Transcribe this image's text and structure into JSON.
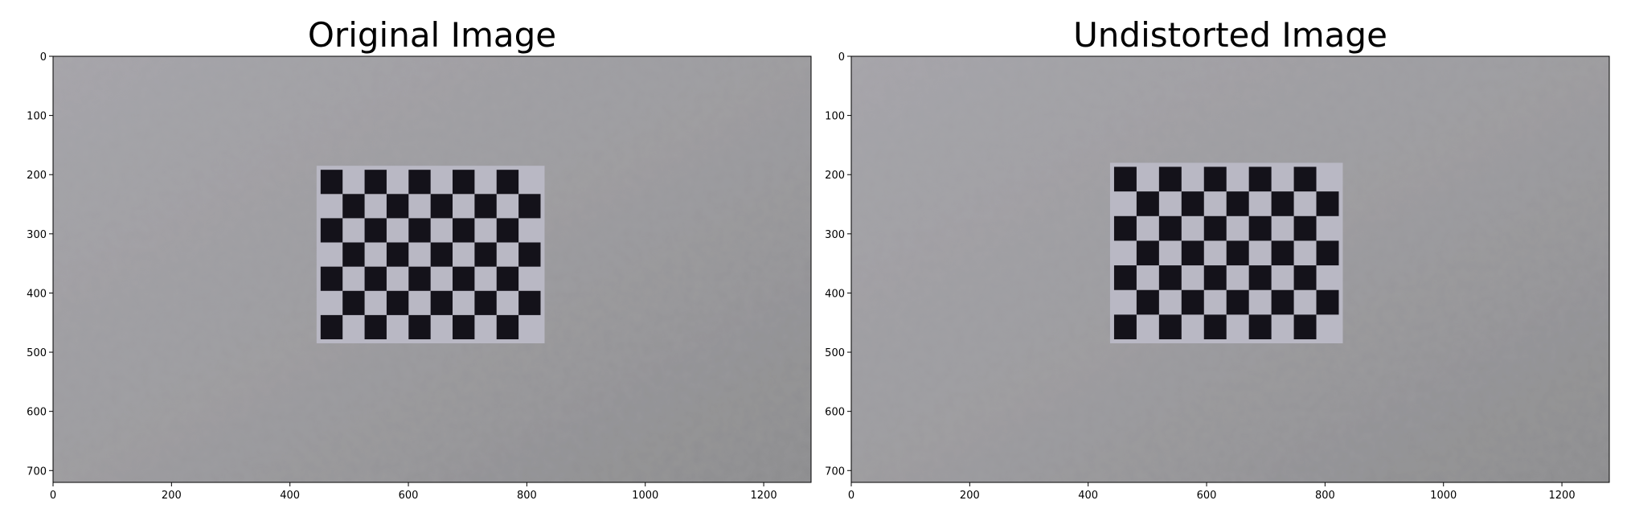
{
  "chart_data": [
    {
      "type": "image",
      "title": "Original Image",
      "xlim": [
        0,
        1280
      ],
      "ylim": [
        720,
        0
      ],
      "x_ticks": [
        0,
        200,
        400,
        600,
        800,
        1000,
        1200
      ],
      "y_ticks": [
        0,
        100,
        200,
        300,
        400,
        500,
        600,
        700
      ],
      "checkerboard": {
        "x_range": [
          445,
          830
        ],
        "y_range": [
          185,
          485
        ],
        "rows": 7,
        "cols": 10
      }
    },
    {
      "type": "image",
      "title": "Undistorted Image",
      "xlim": [
        0,
        1280
      ],
      "ylim": [
        720,
        0
      ],
      "x_ticks": [
        0,
        200,
        400,
        600,
        800,
        1000,
        1200
      ],
      "y_ticks": [
        0,
        100,
        200,
        300,
        400,
        500,
        600,
        700
      ],
      "checkerboard": {
        "x_range": [
          437,
          830
        ],
        "y_range": [
          180,
          485
        ],
        "rows": 7,
        "cols": 10
      }
    }
  ],
  "colors": {
    "wall_light": "#a4a3a8",
    "wall_dark": "#8e8e90",
    "paper": "#b9b8c4",
    "square": "#14121a"
  }
}
